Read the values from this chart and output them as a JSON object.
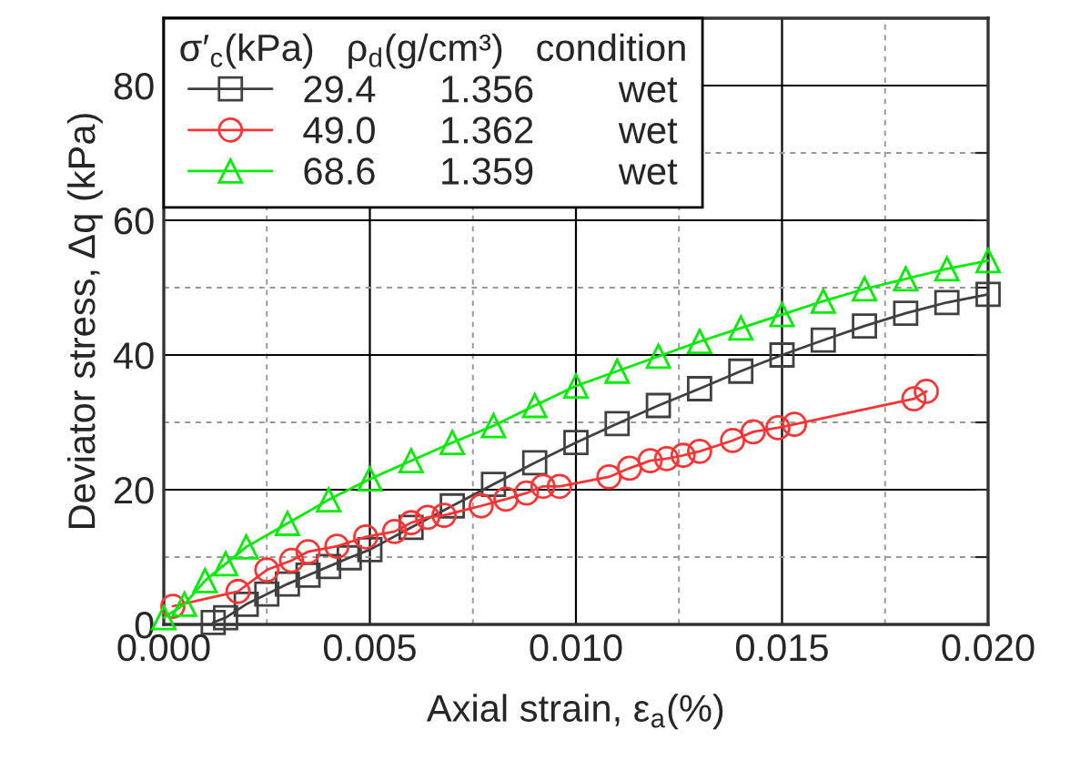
{
  "chart_data": {
    "type": "line",
    "xlabel": "Axial strain, ε$_{a}$(%)",
    "ylabel": "Deviator stress, Δq (kPa)",
    "legend_title": "σ′$_{c}$(kPa)   ρ$_{d}$(g/cm³)   condition",
    "xlim": [
      0,
      0.02
    ],
    "ylim": [
      0,
      90
    ],
    "xticks": [
      {
        "value": 0,
        "label": "0.000"
      },
      {
        "value": 0.0025,
        "label": null
      },
      {
        "value": 0.005,
        "label": "0.005"
      },
      {
        "value": 0.0075,
        "label": null
      },
      {
        "value": 0.01,
        "label": "0.010"
      },
      {
        "value": 0.0125,
        "label": null
      },
      {
        "value": 0.015,
        "label": "0.015"
      },
      {
        "value": 0.0175,
        "label": null
      },
      {
        "value": 0.02,
        "label": "0.020"
      }
    ],
    "yticks": [
      0,
      {
        "value": 10,
        "label": null
      },
      20,
      {
        "value": 30,
        "label": null
      },
      40,
      {
        "value": 50,
        "label": null
      },
      60,
      {
        "value": 70,
        "label": null
      },
      80
    ],
    "grid": true,
    "legend": "top left",
    "line_style": "solid",
    "series": [
      {
        "name": "29.4      1.356        wet",
        "color": "#404040",
        "marker": "square",
        "x": [
          0.0012,
          0.0015,
          0.002,
          0.0025,
          0.003,
          0.0035,
          0.004,
          0.0045,
          0.005,
          0.006,
          0.007,
          0.008,
          0.009,
          0.01,
          0.011,
          0.012,
          0.013,
          0.014,
          0.015,
          0.016,
          0.017,
          0.018,
          0.019,
          0.02
        ],
        "values": [
          0.3,
          1,
          3,
          4.5,
          6,
          7.3,
          8.6,
          9.9,
          11.1,
          14.4,
          17.6,
          20.8,
          24,
          27,
          29.8,
          32.5,
          35,
          37.6,
          40,
          42.2,
          44.3,
          46.2,
          47.8,
          49
        ]
      },
      {
        "name": "49.0      1.362        wet",
        "color": "#ff3333",
        "marker": "circle",
        "x": [
          0.00022,
          0.0018,
          0.0025,
          0.0031,
          0.0035,
          0.0042,
          0.0049,
          0.0056,
          0.006,
          0.0064,
          0.0068,
          0.0077,
          0.0083,
          0.0088,
          0.0092,
          0.0096,
          0.0108,
          0.0113,
          0.0118,
          0.0122,
          0.0126,
          0.013,
          0.0138,
          0.0143,
          0.0149,
          0.0153,
          0.0182,
          0.0185
        ],
        "values": [
          2.7,
          4.9,
          8.1,
          9.5,
          10.8,
          11.6,
          13.0,
          13.8,
          15.1,
          15.9,
          16.2,
          17.6,
          18.6,
          19.5,
          20.5,
          20.5,
          21.9,
          23.2,
          24.3,
          24.6,
          25.1,
          25.7,
          27.3,
          28.6,
          29.2,
          29.7,
          33.5,
          34.6
        ]
      },
      {
        "name": "68.6      1.359        wet",
        "color": "#00ee00",
        "marker": "triangle",
        "x": [
          0,
          0.0005,
          0.001,
          0.0015,
          0.002,
          0.003,
          0.004,
          0.005,
          0.006,
          0.007,
          0.008,
          0.009,
          0.01,
          0.011,
          0.012,
          0.013,
          0.014,
          0.015,
          0.016,
          0.017,
          0.018,
          0.019,
          0.02
        ],
        "values": [
          1,
          3,
          6.5,
          9,
          11.5,
          15,
          18.5,
          21.6,
          24.3,
          27,
          29.5,
          32.5,
          35.4,
          37.6,
          39.8,
          42,
          44,
          46,
          48,
          49.8,
          51.3,
          52.8,
          54
        ]
      }
    ]
  }
}
